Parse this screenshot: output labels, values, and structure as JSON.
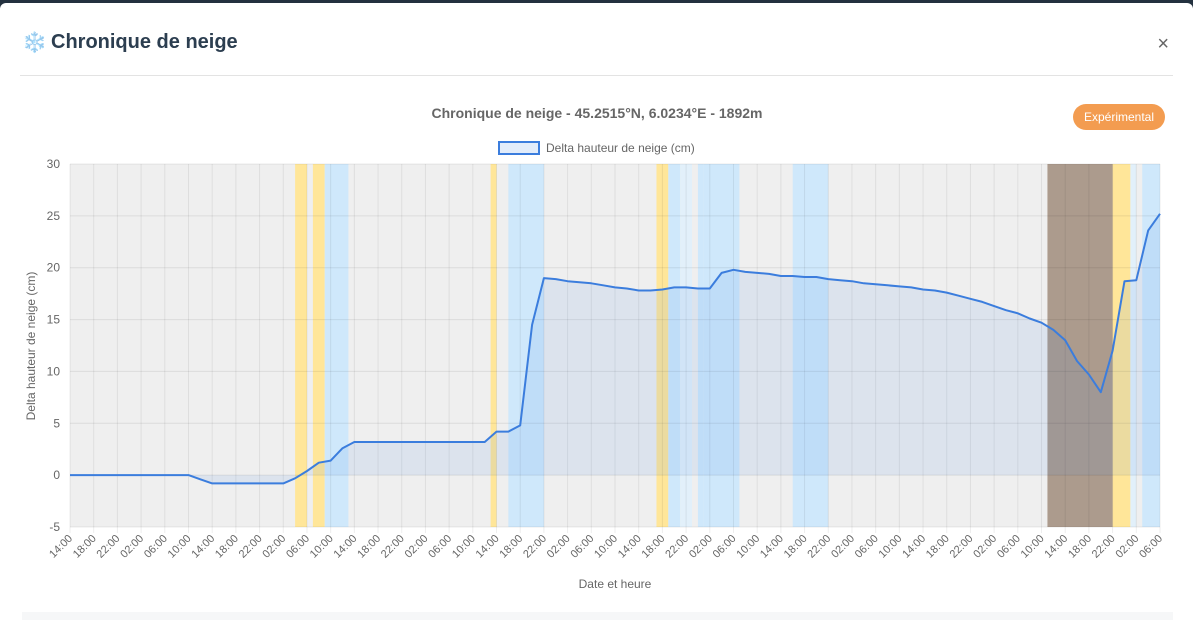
{
  "modal": {
    "icon": "❄️",
    "title": "Chronique de neige",
    "close": "×",
    "badge": "Expérimental"
  },
  "chart_data": {
    "type": "line",
    "title": "Chronique de neige - 45.2515°N, 6.0234°E - 1892m",
    "xlabel": "Date et heure",
    "ylabel": "Delta hauteur de neige (cm)",
    "categories": [
      "14:00",
      null,
      "18:00",
      null,
      "22:00",
      null,
      "02:00",
      null,
      "06:00",
      null,
      "10:00",
      null,
      "14:00",
      null,
      "18:00",
      null,
      "22:00",
      null,
      "02:00",
      null,
      "06:00",
      null,
      "10:00",
      null,
      "14:00",
      null,
      "18:00",
      null,
      "22:00",
      null,
      "02:00",
      null,
      "06:00",
      null,
      "10:00",
      null,
      "14:00",
      null,
      "18:00",
      null,
      "22:00",
      null,
      "02:00",
      null,
      "06:00",
      null,
      "10:00",
      null,
      "14:00",
      null,
      "18:00",
      null,
      "22:00",
      null,
      "02:00",
      null,
      "06:00",
      null,
      "10:00",
      null,
      "14:00",
      null,
      "18:00",
      null,
      "22:00",
      null,
      "02:00",
      null,
      "06:00",
      null,
      "10:00",
      null,
      "14:00",
      null,
      "18:00",
      null,
      "22:00",
      null,
      "02:00",
      null,
      "06:00",
      null,
      "10:00",
      null,
      "14:00",
      null,
      "18:00",
      null,
      "22:00",
      null,
      "02:00",
      null,
      "06:00"
    ],
    "series": [
      {
        "name": "Delta hauteur de neige (cm)",
        "color": "#3b7ddd",
        "values": [
          0,
          0,
          0,
          0,
          0,
          0,
          0,
          0,
          0,
          0,
          0,
          -0.4,
          -0.8,
          -0.8,
          -0.8,
          -0.8,
          -0.8,
          -0.8,
          -0.8,
          -0.3,
          0.4,
          1.2,
          1.4,
          2.6,
          3.2,
          3.2,
          3.2,
          3.2,
          3.2,
          3.2,
          3.2,
          3.2,
          3.2,
          3.2,
          3.2,
          3.2,
          4.2,
          4.2,
          4.8,
          14.5,
          19,
          18.9,
          18.7,
          18.6,
          18.5,
          18.3,
          18.1,
          18,
          17.8,
          17.8,
          17.9,
          18.1,
          18.1,
          18,
          18,
          19.5,
          19.8,
          19.6,
          19.5,
          19.4,
          19.2,
          19.2,
          19.1,
          19.1,
          18.9,
          18.8,
          18.7,
          18.5,
          18.4,
          18.3,
          18.2,
          18.1,
          17.9,
          17.8,
          17.6,
          17.3,
          17,
          16.7,
          16.3,
          15.9,
          15.6,
          15.1,
          14.7,
          14,
          13,
          11,
          9.7,
          8,
          12,
          18.7,
          18.8,
          23.6,
          25.2
        ]
      }
    ],
    "ylim": [
      -5,
      30
    ],
    "yticks": [
      -5,
      0,
      5,
      10,
      15,
      20,
      25,
      30
    ],
    "grid": true,
    "legend": "top",
    "bands": [
      {
        "start": 19,
        "end": 20,
        "color": "#ffe699"
      },
      {
        "start": 20.5,
        "end": 21.5,
        "color": "#ffe699"
      },
      {
        "start": 21.5,
        "end": 23.5,
        "color": "#cfe8fb"
      },
      {
        "start": 35.5,
        "end": 36,
        "color": "#ffe699"
      },
      {
        "start": 37,
        "end": 40,
        "color": "#cfe8fb"
      },
      {
        "start": 49.5,
        "end": 50.5,
        "color": "#ffe699"
      },
      {
        "start": 50.5,
        "end": 51.5,
        "color": "#cfe8fb"
      },
      {
        "start": 51.5,
        "end": 52.5,
        "color": "#e2f0fa"
      },
      {
        "start": 53,
        "end": 53.5,
        "color": "#cfe8fb"
      },
      {
        "start": 53.5,
        "end": 56.5,
        "color": "#cfe8fb"
      },
      {
        "start": 61,
        "end": 64,
        "color": "#cfe8fb"
      },
      {
        "start": 82.5,
        "end": 88,
        "color": "#ac9b8d"
      },
      {
        "start": 88,
        "end": 89.5,
        "color": "#ffe699"
      },
      {
        "start": 89.5,
        "end": 90,
        "color": "#e2f0fa"
      },
      {
        "start": 90.5,
        "end": 92,
        "color": "#cfe8fb"
      }
    ]
  }
}
